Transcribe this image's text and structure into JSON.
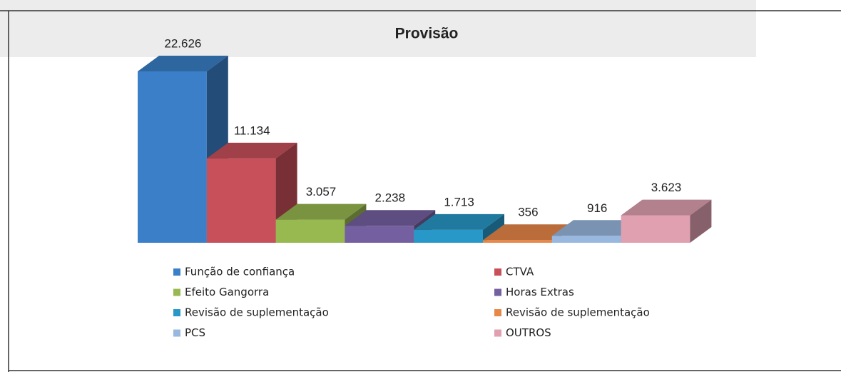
{
  "chart_data": {
    "type": "bar3d",
    "title": "Provisão",
    "categories": [
      "Função de confiança",
      "CTVA",
      "Efeito Gangorra",
      "Horas Extras",
      "Revisão de suplementação",
      "Revisão de suplementação",
      "PCS",
      "OUTROS"
    ],
    "values": [
      22626,
      11134,
      3057,
      2238,
      1713,
      356,
      916,
      3623
    ],
    "value_labels": [
      "22.626",
      "11.134",
      "3.057",
      "2.238",
      "1.713",
      "356",
      "916",
      "3.623"
    ],
    "colors": [
      "#3a7fc8",
      "#c8505a",
      "#98b850",
      "#7460a0",
      "#2898c8",
      "#e88848",
      "#98b8e0",
      "#e0a0b0"
    ]
  }
}
